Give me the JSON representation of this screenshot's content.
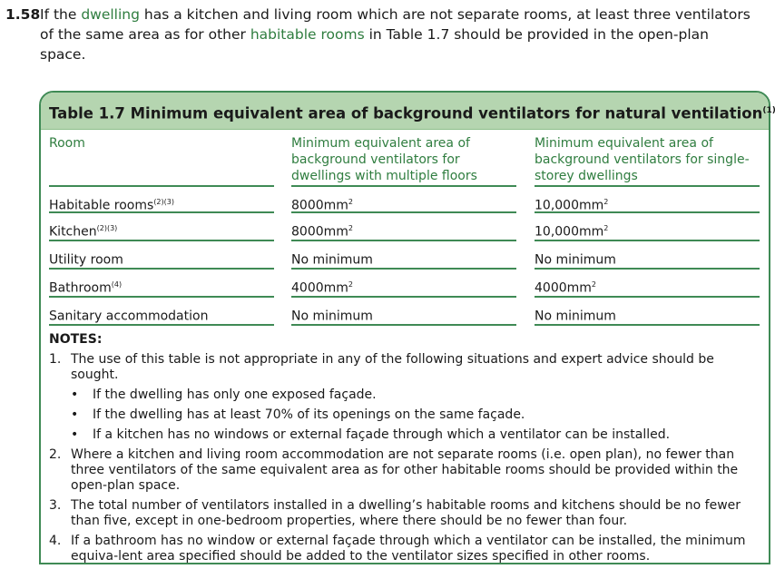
{
  "paragraph": {
    "number": "1.58",
    "parts": [
      "If the ",
      "dwelling",
      " has a kitchen and living room which are not separate rooms, at least three ventilators of the same area as for other ",
      "habitable rooms",
      " in Table 1.7 should be provided in the open-plan space."
    ]
  },
  "table": {
    "title": "Table 1.7  Minimum equivalent area of background ventilators for natural ventilation",
    "title_sup": "(1)",
    "headers": [
      "Room",
      "Minimum equivalent area of background ventilators for dwellings with multiple floors",
      "Minimum equivalent area of background ventilators for single-storey dwellings"
    ],
    "rows": [
      {
        "room": "Habitable rooms",
        "sup": "(2)(3)",
        "multi": "8000mm",
        "multi_sup": "2",
        "single": "10,000mm",
        "single_sup": "2"
      },
      {
        "room": "Kitchen",
        "sup": "(2)(3)",
        "multi": "8000mm",
        "multi_sup": "2",
        "single": "10,000mm",
        "single_sup": "2"
      },
      {
        "room": "Utility room",
        "sup": "",
        "multi": "No minimum",
        "multi_sup": "",
        "single": "No minimum",
        "single_sup": ""
      },
      {
        "room": "Bathroom",
        "sup": "(4)",
        "multi": "4000mm",
        "multi_sup": "2",
        "single": "4000mm",
        "single_sup": "2"
      },
      {
        "room": "Sanitary accommodation",
        "sup": "",
        "multi": "No minimum",
        "multi_sup": "",
        "single": "No minimum",
        "single_sup": ""
      }
    ]
  },
  "notes": {
    "heading": "NOTES:",
    "n1": "The use of this table is not appropriate in any of the following situations and expert advice should be sought.",
    "bullets": [
      "If the dwelling has only one exposed façade.",
      "If the dwelling has at least 70% of its openings on the same façade.",
      "If a kitchen has no windows or external façade through which a ventilator can be installed."
    ],
    "n2": "Where a kitchen and living room accommodation are not separate rooms (i.e. open plan), no fewer than three ventilators of the same equivalent area as for other habitable rooms should be provided within the open-plan space.",
    "n3": "The total number of ventilators installed in a dwelling’s habitable rooms and kitchens should be no fewer than five, except in one-bedroom properties, where there should be no fewer than four.",
    "n4": "If a bathroom has no window or external façade through which a ventilator can be installed, the minimum equiva-lent area specified should be added to the ventilator sizes specified in other rooms.",
    "labels": [
      "1.",
      "2.",
      "3.",
      "4."
    ],
    "bullet": "•"
  }
}
